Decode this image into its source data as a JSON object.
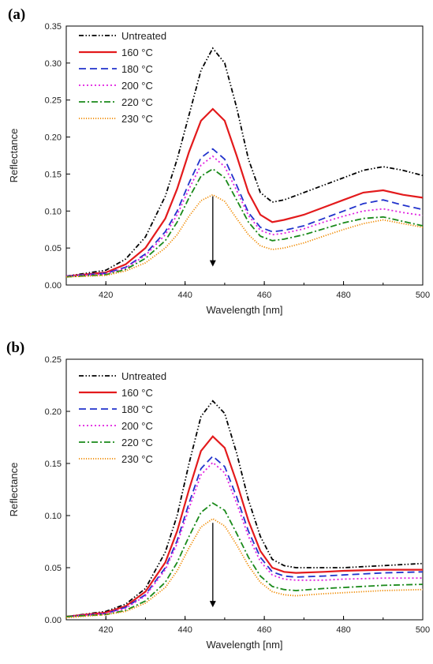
{
  "chart_data": [
    {
      "type": "line",
      "panel_label": "(a)",
      "xlabel": "Wavelength [nm]",
      "ylabel": "Reflectance",
      "xlim": [
        410,
        500
      ],
      "ylim": [
        0,
        0.35
      ],
      "xticks": [
        "420",
        "440",
        "460",
        "480",
        "500"
      ],
      "yticks": [
        "0.00",
        "0.05",
        "0.10",
        "0.15",
        "0.20",
        "0.25",
        "0.30",
        "0.35"
      ],
      "legend_position": "top-left",
      "grid": false,
      "annotation": "downward arrow",
      "arrow": {
        "x": 447,
        "y_from": 0.12,
        "y_to": 0.025
      },
      "series": [
        {
          "name": "Untreated",
          "color": "#000000",
          "dash": "dash-dot-dot",
          "x": [
            410,
            420,
            425,
            430,
            435,
            438,
            441,
            444,
            447,
            450,
            453,
            456,
            459,
            462,
            465,
            470,
            475,
            480,
            485,
            490,
            495,
            500
          ],
          "y": [
            0.012,
            0.02,
            0.035,
            0.065,
            0.12,
            0.17,
            0.23,
            0.29,
            0.32,
            0.3,
            0.24,
            0.17,
            0.125,
            0.112,
            0.115,
            0.125,
            0.135,
            0.145,
            0.155,
            0.16,
            0.155,
            0.148
          ]
        },
        {
          "name": "160 °C",
          "color": "#e31a1c",
          "dash": "solid",
          "x": [
            410,
            420,
            425,
            430,
            435,
            438,
            441,
            444,
            447,
            450,
            453,
            456,
            459,
            462,
            465,
            470,
            475,
            480,
            485,
            490,
            495,
            500
          ],
          "y": [
            0.012,
            0.017,
            0.028,
            0.05,
            0.09,
            0.13,
            0.18,
            0.222,
            0.238,
            0.222,
            0.175,
            0.125,
            0.095,
            0.085,
            0.088,
            0.095,
            0.105,
            0.115,
            0.125,
            0.128,
            0.122,
            0.118
          ]
        },
        {
          "name": "180 °C",
          "color": "#2233cc",
          "dash": "dash",
          "x": [
            410,
            420,
            425,
            430,
            435,
            438,
            441,
            444,
            447,
            450,
            453,
            456,
            459,
            462,
            465,
            470,
            475,
            480,
            485,
            490,
            495,
            500
          ],
          "y": [
            0.012,
            0.016,
            0.024,
            0.042,
            0.072,
            0.1,
            0.138,
            0.172,
            0.184,
            0.17,
            0.135,
            0.098,
            0.078,
            0.072,
            0.074,
            0.08,
            0.09,
            0.1,
            0.11,
            0.115,
            0.108,
            0.102
          ]
        },
        {
          "name": "200 °C",
          "color": "#e020e0",
          "dash": "dot",
          "x": [
            410,
            420,
            425,
            430,
            435,
            438,
            441,
            444,
            447,
            450,
            453,
            456,
            459,
            462,
            465,
            470,
            475,
            480,
            485,
            490,
            495,
            500
          ],
          "y": [
            0.012,
            0.015,
            0.023,
            0.04,
            0.068,
            0.095,
            0.13,
            0.162,
            0.174,
            0.16,
            0.128,
            0.094,
            0.074,
            0.068,
            0.07,
            0.076,
            0.085,
            0.093,
            0.1,
            0.103,
            0.098,
            0.094
          ]
        },
        {
          "name": "220 °C",
          "color": "#1a8a1a",
          "dash": "dash-dot",
          "x": [
            410,
            420,
            425,
            430,
            435,
            438,
            441,
            444,
            447,
            450,
            453,
            456,
            459,
            462,
            465,
            470,
            475,
            480,
            485,
            490,
            495,
            500
          ],
          "y": [
            0.011,
            0.014,
            0.021,
            0.036,
            0.06,
            0.085,
            0.118,
            0.147,
            0.157,
            0.145,
            0.115,
            0.085,
            0.066,
            0.06,
            0.062,
            0.068,
            0.076,
            0.084,
            0.09,
            0.092,
            0.086,
            0.08
          ]
        },
        {
          "name": "230  °C",
          "color": "#f08a00",
          "dash": "fine-dot",
          "x": [
            410,
            420,
            425,
            430,
            435,
            438,
            441,
            444,
            447,
            450,
            453,
            456,
            459,
            462,
            465,
            470,
            475,
            480,
            485,
            490,
            495,
            500
          ],
          "y": [
            0.011,
            0.013,
            0.019,
            0.03,
            0.05,
            0.068,
            0.093,
            0.114,
            0.122,
            0.113,
            0.09,
            0.068,
            0.053,
            0.048,
            0.05,
            0.057,
            0.066,
            0.075,
            0.083,
            0.088,
            0.083,
            0.078
          ]
        }
      ]
    },
    {
      "type": "line",
      "panel_label": "(b)",
      "xlabel": "Wavelength [nm]",
      "ylabel": "Reflectance",
      "xlim": [
        410,
        500
      ],
      "ylim": [
        0,
        0.25
      ],
      "xticks": [
        "420",
        "440",
        "460",
        "480",
        "500"
      ],
      "yticks": [
        "0.00",
        "0.05",
        "0.10",
        "0.15",
        "0.20",
        "0.25"
      ],
      "legend_position": "top-left",
      "grid": false,
      "annotation": "downward arrow",
      "arrow": {
        "x": 447,
        "y_from": 0.093,
        "y_to": 0.012
      },
      "series": [
        {
          "name": "Untreated",
          "color": "#000000",
          "dash": "dash-dot-dot",
          "x": [
            410,
            420,
            425,
            430,
            435,
            438,
            441,
            444,
            447,
            450,
            453,
            456,
            459,
            462,
            465,
            468,
            475,
            480,
            490,
            500
          ],
          "y": [
            0.003,
            0.008,
            0.015,
            0.03,
            0.065,
            0.1,
            0.15,
            0.195,
            0.21,
            0.198,
            0.16,
            0.115,
            0.08,
            0.058,
            0.052,
            0.05,
            0.05,
            0.05,
            0.052,
            0.054
          ]
        },
        {
          "name": "160 °C",
          "color": "#e31a1c",
          "dash": "solid",
          "x": [
            410,
            420,
            425,
            430,
            435,
            438,
            441,
            444,
            447,
            450,
            453,
            456,
            459,
            462,
            465,
            468,
            475,
            480,
            490,
            500
          ],
          "y": [
            0.003,
            0.007,
            0.013,
            0.027,
            0.055,
            0.085,
            0.125,
            0.162,
            0.176,
            0.165,
            0.132,
            0.095,
            0.066,
            0.05,
            0.046,
            0.045,
            0.046,
            0.047,
            0.048,
            0.048
          ]
        },
        {
          "name": "180 °C",
          "color": "#2233cc",
          "dash": "dash",
          "x": [
            410,
            420,
            425,
            430,
            435,
            438,
            441,
            444,
            447,
            450,
            453,
            456,
            459,
            462,
            465,
            468,
            475,
            480,
            490,
            500
          ],
          "y": [
            0.003,
            0.006,
            0.012,
            0.024,
            0.05,
            0.076,
            0.112,
            0.145,
            0.157,
            0.147,
            0.118,
            0.085,
            0.06,
            0.046,
            0.042,
            0.041,
            0.042,
            0.043,
            0.045,
            0.046
          ]
        },
        {
          "name": "200 °C",
          "color": "#e020e0",
          "dash": "dot",
          "x": [
            410,
            420,
            425,
            430,
            435,
            438,
            441,
            444,
            447,
            450,
            453,
            456,
            459,
            462,
            465,
            468,
            475,
            480,
            490,
            500
          ],
          "y": [
            0.003,
            0.006,
            0.011,
            0.023,
            0.048,
            0.073,
            0.107,
            0.139,
            0.151,
            0.141,
            0.112,
            0.08,
            0.056,
            0.043,
            0.039,
            0.038,
            0.038,
            0.039,
            0.04,
            0.04
          ]
        },
        {
          "name": "220 °C",
          "color": "#1a8a1a",
          "dash": "dash-dot",
          "x": [
            410,
            420,
            425,
            430,
            435,
            438,
            441,
            444,
            447,
            450,
            453,
            456,
            459,
            462,
            465,
            468,
            475,
            480,
            490,
            500
          ],
          "y": [
            0.003,
            0.005,
            0.009,
            0.018,
            0.036,
            0.055,
            0.08,
            0.103,
            0.112,
            0.105,
            0.083,
            0.06,
            0.042,
            0.032,
            0.029,
            0.028,
            0.03,
            0.031,
            0.033,
            0.034
          ]
        },
        {
          "name": "230 °C",
          "color": "#f08a00",
          "dash": "fine-dot",
          "x": [
            410,
            420,
            425,
            430,
            435,
            438,
            441,
            444,
            447,
            450,
            453,
            456,
            459,
            462,
            465,
            468,
            475,
            480,
            490,
            500
          ],
          "y": [
            0.002,
            0.005,
            0.008,
            0.016,
            0.031,
            0.047,
            0.069,
            0.089,
            0.097,
            0.09,
            0.072,
            0.052,
            0.036,
            0.027,
            0.024,
            0.023,
            0.025,
            0.026,
            0.028,
            0.029
          ]
        }
      ]
    }
  ]
}
